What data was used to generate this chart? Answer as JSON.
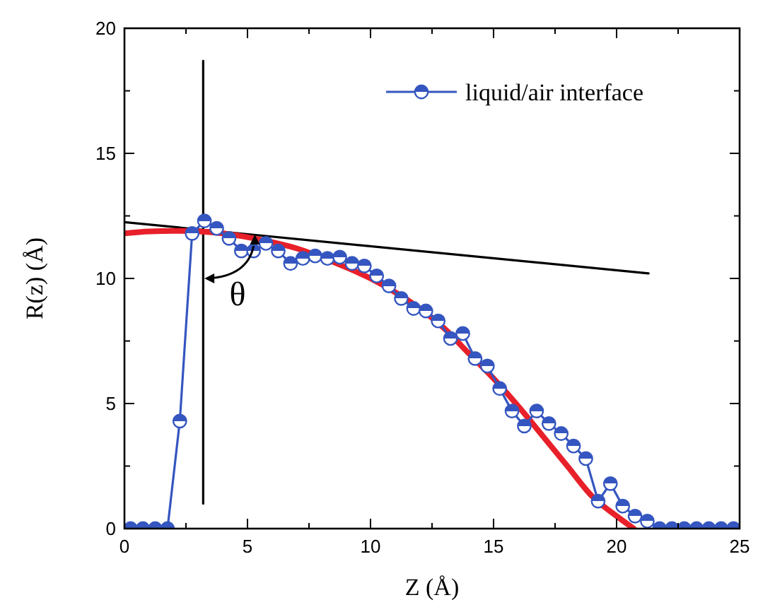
{
  "chart_data": {
    "type": "line",
    "xlabel": "Z (Å)",
    "ylabel": "R(z) (Å)",
    "xlim": [
      0,
      25
    ],
    "ylim": [
      0,
      20
    ],
    "xticks": [
      0,
      {
        "value": 2.5,
        "label": null
      },
      5,
      {
        "value": 7.5,
        "label": null
      },
      10,
      {
        "value": 12.5,
        "label": null
      },
      15,
      {
        "value": 17.5,
        "label": null
      },
      20,
      {
        "value": 22.5,
        "label": null
      },
      25
    ],
    "yticks": [
      0,
      {
        "value": 2.5,
        "label": null
      },
      5,
      {
        "value": 7.5,
        "label": null
      },
      10,
      {
        "value": 12.5,
        "label": null
      },
      15,
      {
        "value": 17.5,
        "label": null
      },
      20
    ],
    "grid": false,
    "legend": "top right",
    "line_style": "solid",
    "annotations": [
      "θ"
    ],
    "series": [
      {
        "name": "liquid/air interface",
        "color": "#3556c0",
        "marker": "circle",
        "x": [
          0.25,
          0.75,
          1.25,
          1.75,
          2.25,
          2.75,
          3.25,
          3.75,
          4.25,
          4.75,
          5.25,
          5.75,
          6.25,
          6.75,
          7.25,
          7.75,
          8.25,
          8.75,
          9.25,
          9.75,
          10.25,
          10.75,
          11.25,
          11.75,
          12.25,
          12.75,
          13.25,
          13.75,
          14.25,
          14.75,
          15.25,
          15.75,
          16.25,
          16.75,
          17.25,
          17.75,
          18.25,
          18.75,
          19.25,
          19.75,
          20.25,
          20.75,
          21.25,
          21.75,
          22.25,
          22.75,
          23.25,
          23.75,
          24.25,
          24.75
        ],
        "values": [
          0,
          0,
          0,
          0,
          4.3,
          11.8,
          12.3,
          12.0,
          11.6,
          11.1,
          11.1,
          11.4,
          11.1,
          10.6,
          10.8,
          10.9,
          10.8,
          10.85,
          10.6,
          10.5,
          10.1,
          9.7,
          9.2,
          8.8,
          8.7,
          8.3,
          7.6,
          7.8,
          6.8,
          6.5,
          5.6,
          4.7,
          4.1,
          4.7,
          4.2,
          3.8,
          3.3,
          2.8,
          1.1,
          1.8,
          0.9,
          0.5,
          0.3,
          0,
          0,
          0,
          0,
          0,
          0,
          0
        ]
      },
      {
        "color": "#e8202a",
        "marker": "none",
        "x": [
          0,
          1,
          2,
          3,
          4,
          5,
          6,
          7,
          8,
          9,
          10,
          11,
          12,
          13,
          14,
          15,
          16,
          17,
          18,
          19,
          20,
          20.7
        ],
        "values": [
          11.8,
          11.88,
          11.9,
          11.88,
          11.8,
          11.65,
          11.45,
          11.2,
          10.85,
          10.45,
          10.0,
          9.45,
          8.8,
          8.0,
          7.0,
          6.0,
          4.9,
          3.7,
          2.5,
          1.3,
          0.5,
          0
        ]
      },
      {
        "color": "#000000",
        "marker": "none",
        "x": [
          0,
          21.3
        ],
        "values": [
          12.25,
          10.2
        ]
      },
      {
        "color": "#000000",
        "marker": "none",
        "x": [
          3.2,
          3.2
        ],
        "values": [
          1,
          18.7
        ]
      }
    ]
  }
}
